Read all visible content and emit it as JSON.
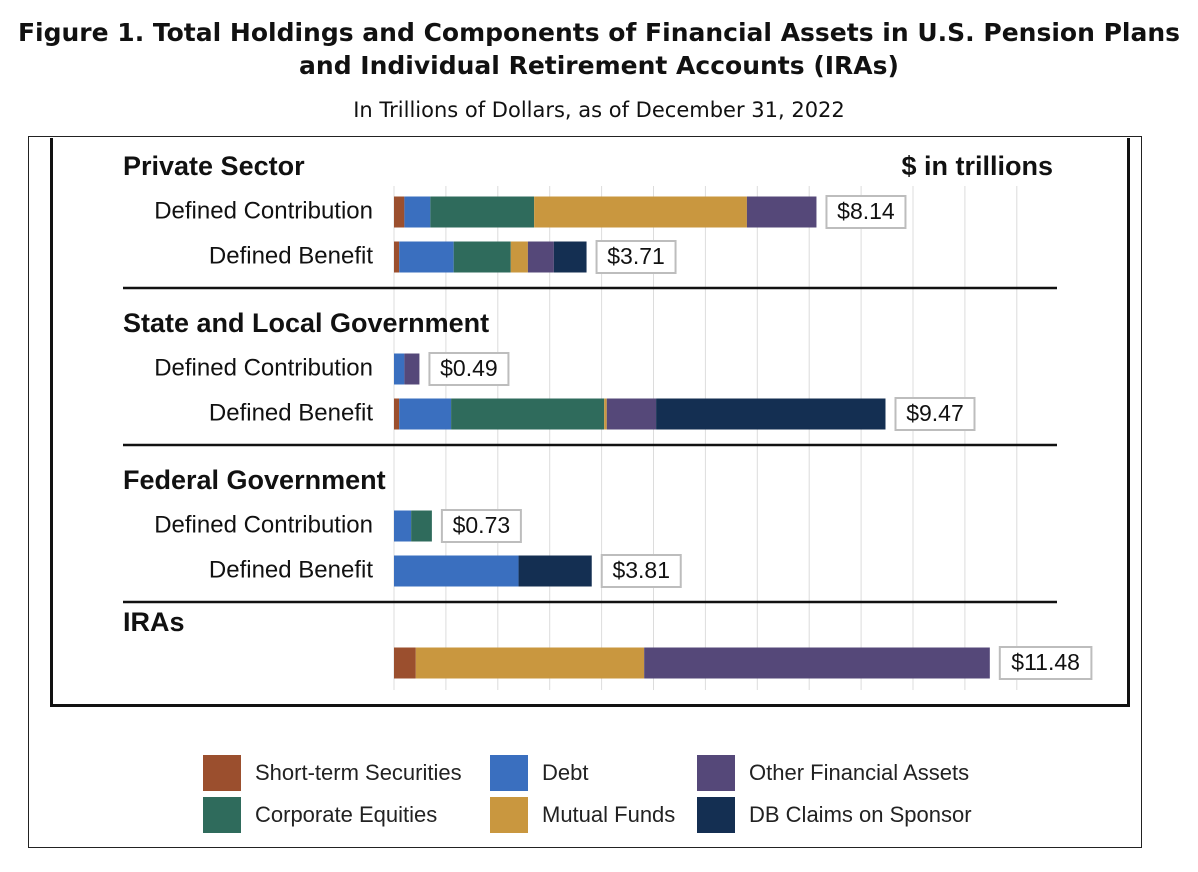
{
  "figure": {
    "title_line1": "Figure 1. Total Holdings and Components of Financial Assets in U.S. Pension Plans",
    "title_line2": "and Individual Retirement Accounts (IRAs)",
    "subtitle": "In Trillions of Dollars, as of December 31, 2022"
  },
  "chart_data": {
    "type": "bar",
    "orientation": "horizontal",
    "stacked": true,
    "units_label": "$ in trillions",
    "xlim": [
      0,
      12
    ],
    "grid": "vertical",
    "legend_position": "bottom",
    "colors": {
      "Short-term Securities": "#9b4f2e",
      "Debt": "#3a6fbf",
      "Corporate Equities": "#2f6b5c",
      "Mutual Funds": "#c9973f",
      "Other Financial Assets": "#554879",
      "DB Claims on Sponsor": "#142f52"
    },
    "components": [
      "Short-term Securities",
      "Debt",
      "Corporate Equities",
      "Mutual Funds",
      "Other Financial Assets",
      "DB Claims on Sponsor"
    ],
    "groups": [
      {
        "name": "Private Sector",
        "rows": [
          {
            "label": "Defined Contribution",
            "total_label": "$8.14",
            "values": [
              0.2,
              0.5,
              2.0,
              4.1,
              1.34,
              0
            ]
          },
          {
            "label": "Defined Benefit",
            "total_label": "$3.71",
            "values": [
              0.1,
              1.05,
              1.1,
              0.33,
              0.5,
              0.63
            ]
          }
        ]
      },
      {
        "name": "State and Local Government",
        "rows": [
          {
            "label": "Defined Contribution",
            "total_label": "$0.49",
            "values": [
              0.0,
              0.2,
              0.0,
              0.0,
              0.29,
              0
            ]
          },
          {
            "label": "Defined Benefit",
            "total_label": "$9.47",
            "values": [
              0.1,
              1.0,
              2.95,
              0.05,
              0.95,
              4.42
            ]
          }
        ]
      },
      {
        "name": "Federal Government",
        "rows": [
          {
            "label": "Defined Contribution",
            "total_label": "$0.73",
            "values": [
              0.0,
              0.33,
              0.4,
              0.0,
              0.0,
              0
            ]
          },
          {
            "label": "Defined Benefit",
            "total_label": "$3.81",
            "values": [
              0.0,
              2.4,
              0.0,
              0.0,
              0.0,
              1.41
            ]
          }
        ]
      },
      {
        "name": "IRAs",
        "rows": [
          {
            "label": "",
            "total_label": "$11.48",
            "values": [
              0.42,
              0.0,
              0.0,
              4.4,
              6.66,
              0
            ]
          }
        ]
      }
    ]
  },
  "legend": {
    "items": [
      {
        "label": "Short-term Securities",
        "color": "#9b4f2e"
      },
      {
        "label": "Corporate Equities",
        "color": "#2f6b5c"
      },
      {
        "label": "Debt",
        "color": "#3a6fbf"
      },
      {
        "label": "Mutual Funds",
        "color": "#c9973f"
      },
      {
        "label": "Other Financial Assets",
        "color": "#554879"
      },
      {
        "label": "DB Claims on Sponsor",
        "color": "#142f52"
      }
    ]
  }
}
